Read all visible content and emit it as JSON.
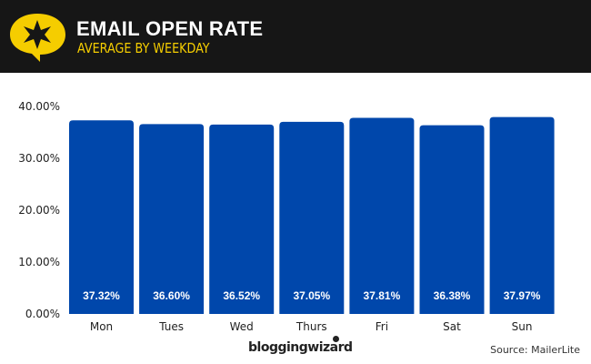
{
  "header": {
    "title": "EMAIL OPEN RATE",
    "subtitle": "AVERAGE BY WEEKDAY"
  },
  "footer": {
    "brand": "bloggingwizard",
    "source": "Source: MailerLite"
  },
  "colors": {
    "bar": "#0047ab",
    "header_bg": "#161616",
    "accent": "#f5cd00"
  },
  "chart_data": {
    "type": "bar",
    "title": "EMAIL OPEN RATE",
    "subtitle": "AVERAGE BY WEEKDAY",
    "categories": [
      "Mon",
      "Tues",
      "Wed",
      "Thurs",
      "Fri",
      "Sat",
      "Sun"
    ],
    "values": [
      37.32,
      36.6,
      36.52,
      37.05,
      37.81,
      36.38,
      37.97
    ],
    "data_labels": [
      "37.32%",
      "36.60%",
      "36.52%",
      "37.05%",
      "37.81%",
      "36.38%",
      "37.97%"
    ],
    "yticks": [
      "0.00%",
      "10.00%",
      "20.00%",
      "30.00%",
      "40.00%"
    ],
    "ylim": [
      0,
      40
    ],
    "grid": false,
    "xlabel": "",
    "ylabel": ""
  }
}
